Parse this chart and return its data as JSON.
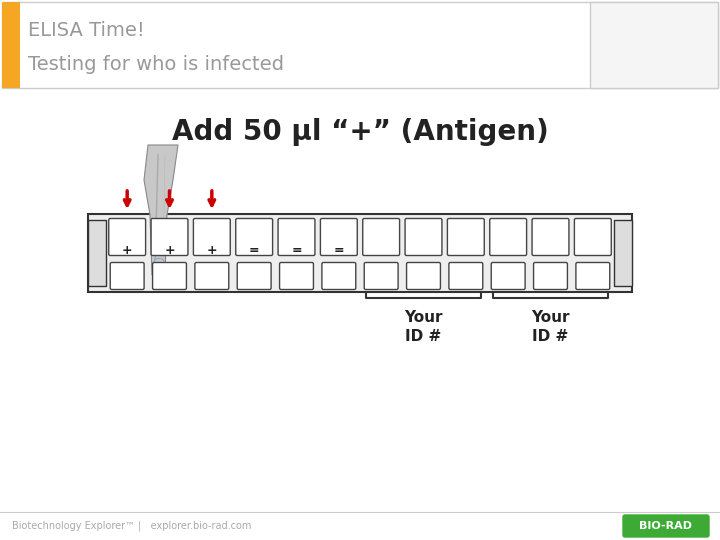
{
  "title_line1": "ELISA Time!",
  "title_line2": "Testing for who is infected",
  "main_heading": "Add 50 µl “+” (Antigen)",
  "header_bar_color": "#F5A623",
  "header_text_color": "#999999",
  "header_border_color": "#CCCCCC",
  "bg_color": "#FFFFFF",
  "footer_text": "Biotechnology Explorer™ |   explorer.bio-rad.com",
  "biorad_text": "BIO-RAD",
  "biorad_bg": "#3DAA35",
  "well_labels_left": [
    "+",
    "+",
    "+",
    "=",
    "=",
    "="
  ],
  "arrow_color": "#CC0000",
  "n_wells": 12
}
